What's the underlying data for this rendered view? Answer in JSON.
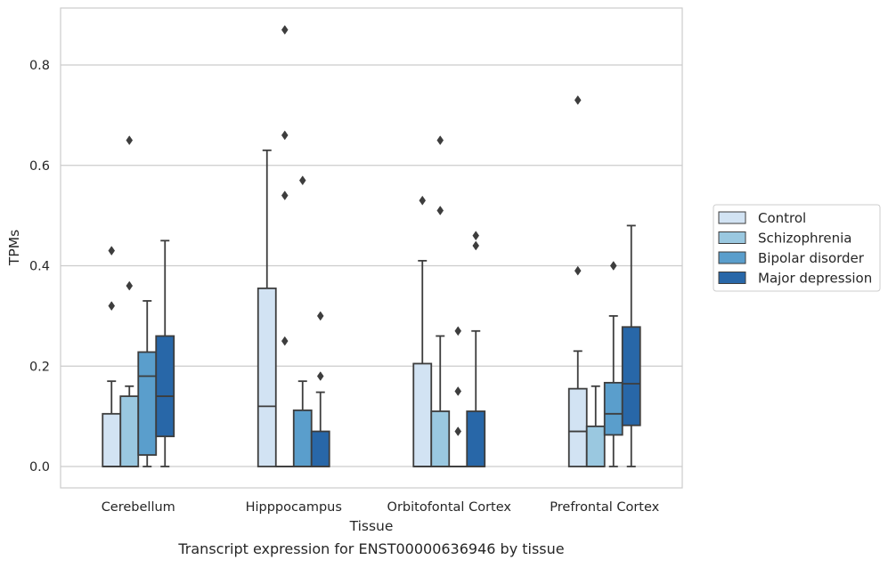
{
  "chart_data": {
    "type": "boxplot",
    "title": "",
    "caption": "Transcript expression for ENST00000636946 by tissue",
    "xlabel": "Tissue",
    "ylabel": "TPMs",
    "ylim": [
      -0.04,
      0.915
    ],
    "yticks": [
      0.0,
      0.2,
      0.4,
      0.6,
      0.8
    ],
    "ytick_labels": [
      "0.0",
      "0.2",
      "0.4",
      "0.6",
      "0.8"
    ],
    "grid": "horizontal",
    "legend_position": "right",
    "categories": [
      "Cerebellum",
      "Hipppocampus",
      "Orbitofontal Cortex",
      "Prefrontal Cortex"
    ],
    "series": [
      {
        "name": "Control",
        "color": "#d2e3f3",
        "boxes": [
          {
            "q1": 0.0,
            "median": 0.0,
            "q3": 0.105,
            "whisker_low": 0.0,
            "whisker_high": 0.17,
            "outliers": [
              0.32,
              0.43
            ]
          },
          {
            "q1": 0.0,
            "median": 0.12,
            "q3": 0.355,
            "whisker_low": 0.0,
            "whisker_high": 0.63,
            "outliers": []
          },
          {
            "q1": 0.0,
            "median": 0.0,
            "q3": 0.205,
            "whisker_low": 0.0,
            "whisker_high": 0.41,
            "outliers": [
              0.53
            ]
          },
          {
            "q1": 0.0,
            "median": 0.07,
            "q3": 0.155,
            "whisker_low": 0.0,
            "whisker_high": 0.23,
            "outliers": [
              0.39,
              0.73
            ]
          }
        ]
      },
      {
        "name": "Schizophrenia",
        "color": "#9ac8e0",
        "boxes": [
          {
            "q1": 0.0,
            "median": 0.0,
            "q3": 0.14,
            "whisker_low": 0.0,
            "whisker_high": 0.16,
            "outliers": [
              0.36,
              0.65
            ]
          },
          {
            "q1": 0.0,
            "median": 0.0,
            "q3": 0.0,
            "whisker_low": 0.0,
            "whisker_high": 0.0,
            "outliers": [
              0.25,
              0.54,
              0.66,
              0.87
            ]
          },
          {
            "q1": 0.0,
            "median": 0.0,
            "q3": 0.11,
            "whisker_low": 0.0,
            "whisker_high": 0.26,
            "outliers": [
              0.51,
              0.65
            ]
          },
          {
            "q1": 0.0,
            "median": 0.0,
            "q3": 0.08,
            "whisker_low": 0.0,
            "whisker_high": 0.16,
            "outliers": []
          }
        ]
      },
      {
        "name": "Bipolar disorder",
        "color": "#5a9ecc",
        "boxes": [
          {
            "q1": 0.023,
            "median": 0.18,
            "q3": 0.228,
            "whisker_low": 0.0,
            "whisker_high": 0.33,
            "outliers": []
          },
          {
            "q1": 0.0,
            "median": 0.0,
            "q3": 0.112,
            "whisker_low": 0.0,
            "whisker_high": 0.17,
            "outliers": [
              0.57
            ]
          },
          {
            "q1": 0.0,
            "median": 0.0,
            "q3": 0.0,
            "whisker_low": 0.0,
            "whisker_high": 0.0,
            "outliers": [
              0.07,
              0.15,
              0.27
            ]
          },
          {
            "q1": 0.063,
            "median": 0.105,
            "q3": 0.167,
            "whisker_low": 0.0,
            "whisker_high": 0.3,
            "outliers": [
              0.4
            ]
          }
        ]
      },
      {
        "name": "Major depression",
        "color": "#2867a8",
        "boxes": [
          {
            "q1": 0.06,
            "median": 0.14,
            "q3": 0.26,
            "whisker_low": 0.0,
            "whisker_high": 0.45,
            "outliers": []
          },
          {
            "q1": 0.0,
            "median": 0.0,
            "q3": 0.07,
            "whisker_low": 0.0,
            "whisker_high": 0.148,
            "outliers": [
              0.18,
              0.3
            ]
          },
          {
            "q1": 0.0,
            "median": 0.0,
            "q3": 0.11,
            "whisker_low": 0.0,
            "whisker_high": 0.27,
            "outliers": [
              0.44,
              0.46
            ]
          },
          {
            "q1": 0.082,
            "median": 0.165,
            "q3": 0.278,
            "whisker_low": 0.0,
            "whisker_high": 0.48,
            "outliers": []
          }
        ]
      }
    ]
  }
}
